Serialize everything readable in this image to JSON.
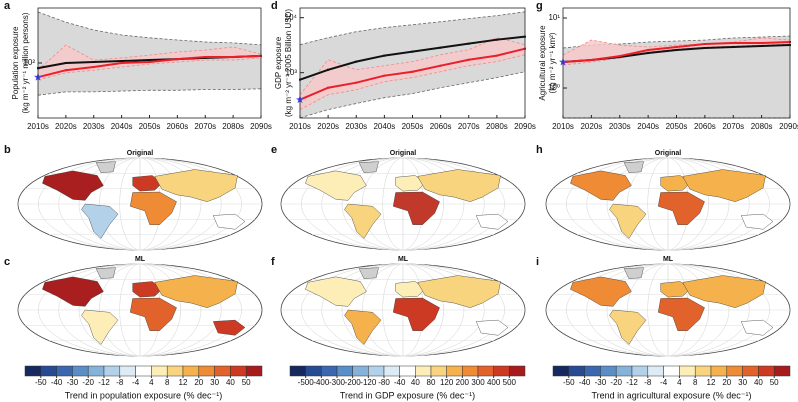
{
  "panels": {
    "letters": [
      "a",
      "b",
      "c",
      "d",
      "e",
      "f",
      "g",
      "h",
      "i"
    ],
    "map_titles": [
      "Original",
      "ML"
    ]
  },
  "chart_data": [
    {
      "type": "line",
      "ylog": true,
      "ylabel": [
        "Population exposure",
        "(kg m⁻² yr⁻¹ million persons)"
      ],
      "categories": [
        "2010s",
        "2020s",
        "2030s",
        "2040s",
        "2050s",
        "2060s",
        "2070s",
        "2080s",
        "2090s"
      ],
      "ylim": [
        20,
        500
      ],
      "yticks": [
        {
          "value": 100,
          "label": "10²"
        }
      ],
      "series": [
        {
          "color": "#111111",
          "values": [
            86,
            100,
            103,
            106,
            109,
            112,
            116,
            119,
            123
          ]
        },
        {
          "color": "#e8202a",
          "values": [
            66,
            81,
            89,
            100,
            103,
            112,
            119,
            119,
            123
          ]
        }
      ],
      "bands": [
        {
          "color": "#d9d9d9",
          "line_color": "#666666",
          "lower": [
            39,
            43,
            43,
            44,
            45,
            45,
            46,
            46,
            47
          ],
          "upper": [
            445,
            330,
            263,
            227,
            209,
            196,
            185,
            180,
            170
          ]
        },
        {
          "color": "#f8c8c8",
          "line_color": "#f08a8a",
          "lower": [
            61,
            75,
            81,
            89,
            97,
            103,
            109,
            109,
            116
          ],
          "upper": [
            81,
            169,
            109,
            116,
            126,
            138,
            146,
            160,
            130
          ]
        }
      ],
      "marker_color": "#4a4aff"
    },
    {
      "type": "line",
      "ylog": true,
      "ylabel": [
        "GDP exposure",
        "(kg m⁻² yr⁻¹ 2005 Billion USD)"
      ],
      "categories": [
        "2010s",
        "2020s",
        "2030s",
        "2040s",
        "2050s",
        "2060s",
        "2070s",
        "2080s",
        "2090s"
      ],
      "ylim": [
        150,
        15000
      ],
      "yticks": [
        {
          "value": 1000,
          "label": "10³"
        },
        {
          "value": 10000,
          "label": "10⁴"
        }
      ],
      "series": [
        {
          "color": "#111111",
          "values": [
            746,
            1130,
            1590,
            2040,
            2410,
            2850,
            3370,
            3980,
            4520
          ]
        },
        {
          "color": "#e8202a",
          "values": [
            323,
            533,
            658,
            882,
            1040,
            1340,
            1720,
            2040,
            2730
          ]
        }
      ],
      "bands": [
        {
          "color": "#d9d9d9",
          "line_color": "#666666",
          "lower": [
            151,
            213,
            275,
            351,
            417,
            533,
            658,
            813,
            1040
          ],
          "upper": [
            3230,
            4330,
            5560,
            6600,
            7440,
            8450,
            9600,
            10900,
            12800
          ]
        },
        {
          "color": "#f8c8c8",
          "line_color": "#f08a8a",
          "lower": [
            213,
            397,
            490,
            686,
            813,
            1040,
            1340,
            1590,
            2120
          ],
          "upper": [
            397,
            1720,
            1130,
            1340,
            1590,
            2120,
            2620,
            4330,
            3230
          ]
        }
      ],
      "marker_color": "#4a4aff"
    },
    {
      "type": "line",
      "ylog": true,
      "ylabel": [
        "Agricultural exposure",
        "(kg m⁻² yr⁻¹ km²)"
      ],
      "categories": [
        "2010s",
        "2020s",
        "2030s",
        "2040s",
        "2050s",
        "2060s",
        "2070s",
        "2080s",
        "2090s"
      ],
      "ylim": [
        0.373,
        13.9
      ],
      "yticks": [
        {
          "value": 1,
          "label": "10⁰"
        },
        {
          "value": 10,
          "label": "10¹"
        }
      ],
      "series": [
        {
          "color": "#111111",
          "values": [
            2.35,
            2.51,
            2.77,
            3.16,
            3.49,
            3.73,
            3.85,
            3.98,
            4.11
          ]
        },
        {
          "color": "#e8202a",
          "values": [
            2.35,
            2.51,
            2.86,
            3.49,
            3.85,
            4.25,
            4.39,
            4.39,
            4.54
          ]
        }
      ],
      "bands": [
        {
          "color": "#d9d9d9",
          "line_color": "#666666",
          "lower": [
            0.373,
            0.373,
            0.373,
            0.373,
            0.373,
            0.373,
            0.373,
            0.373,
            0.373
          ],
          "upper": [
            3.73,
            4.11,
            4.25,
            4.54,
            4.69,
            4.84,
            5.18,
            5.35,
            5.53
          ]
        },
        {
          "color": "#f8c8c8",
          "line_color": "#f08a8a",
          "lower": [
            2.13,
            2.35,
            2.68,
            3.27,
            3.61,
            3.85,
            3.98,
            4.11,
            4.25
          ],
          "upper": [
            2.96,
            4.84,
            4.11,
            3.85,
            4.11,
            4.25,
            4.54,
            5.18,
            4.84
          ]
        }
      ],
      "marker_color": "#4a4aff"
    },
    {
      "type": "colorbar",
      "title": "Trend in population exposure (% dec⁻¹)",
      "ticks": [
        -50,
        -40,
        -30,
        -20,
        -12,
        -8,
        -4,
        4,
        8,
        12,
        20,
        30,
        40,
        50
      ],
      "colors": [
        "#16295e",
        "#274b92",
        "#3a67ad",
        "#5a8ec6",
        "#86b2da",
        "#b3d1e9",
        "#dcebf5",
        "#ffffff",
        "#fdeeb8",
        "#f9d47f",
        "#f5b24c",
        "#ef8a35",
        "#e2622b",
        "#cc3a24",
        "#a61c1c"
      ]
    },
    {
      "type": "colorbar",
      "title": "Trend in GDP exposure (% dec⁻¹)",
      "ticks": [
        -500,
        -400,
        -300,
        -200,
        -120,
        -80,
        -40,
        40,
        80,
        120,
        200,
        300,
        400,
        500
      ],
      "colors": [
        "#16295e",
        "#274b92",
        "#3a67ad",
        "#5a8ec6",
        "#86b2da",
        "#b3d1e9",
        "#dcebf5",
        "#ffffff",
        "#fdeeb8",
        "#f9d47f",
        "#f5b24c",
        "#ef8a35",
        "#e2622b",
        "#cc3a24",
        "#a61c1c"
      ]
    },
    {
      "type": "colorbar",
      "title": "Trend in agricultural exposure (% dec⁻¹)",
      "ticks": [
        -50,
        -40,
        -30,
        -20,
        -12,
        -8,
        -4,
        4,
        8,
        12,
        20,
        30,
        40,
        50
      ],
      "colors": [
        "#16295e",
        "#274b92",
        "#3a67ad",
        "#5a8ec6",
        "#86b2da",
        "#b3d1e9",
        "#dcebf5",
        "#ffffff",
        "#fdeeb8",
        "#f9d47f",
        "#f5b24c",
        "#ef8a35",
        "#e2622b",
        "#cc3a24",
        "#a61c1c"
      ]
    }
  ]
}
